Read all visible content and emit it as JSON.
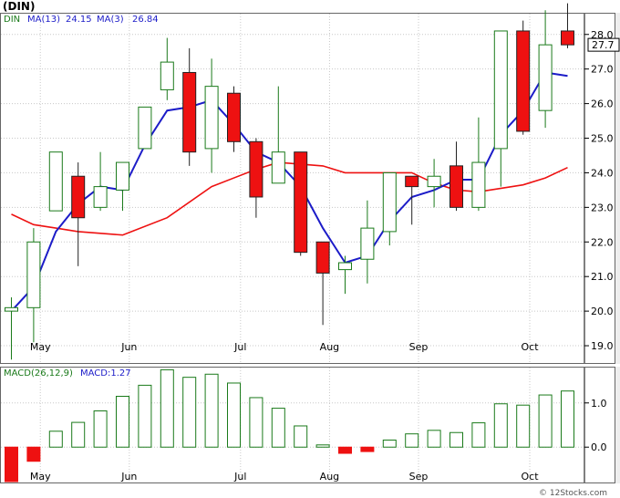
{
  "chart_data": [
    {
      "type": "candlestick",
      "title": "(DIN)",
      "legend": [
        {
          "key": "sym",
          "text": "DIN",
          "color": "#1a7a1a"
        },
        {
          "key": "ma13",
          "text": "MA(13)",
          "value": "24.15",
          "color": "#1c1cc8"
        },
        {
          "key": "ma3",
          "text": "MA(3)",
          "value": "26.84",
          "color": "#1c1cc8"
        }
      ],
      "months": [
        {
          "label": "May",
          "pos": 1.3
        },
        {
          "label": "Jun",
          "pos": 5.3
        },
        {
          "label": "Jul",
          "pos": 10.3
        },
        {
          "label": "Aug",
          "pos": 14.3
        },
        {
          "label": "Sep",
          "pos": 18.3
        },
        {
          "label": "Oct",
          "pos": 23.3
        }
      ],
      "ylim": [
        18.5,
        28.6
      ],
      "yticks": [
        "19.0",
        "20.0",
        "21.0",
        "22.0",
        "23.0",
        "24.0",
        "25.0",
        "26.0",
        "27.0",
        "28.0"
      ],
      "last_price": "27.7",
      "up_color": "#1a7a1a",
      "down_color": "#ee1111",
      "candles": [
        {
          "o": 20.0,
          "h": 20.4,
          "l": 18.6,
          "c": 20.1
        },
        {
          "o": 20.1,
          "h": 22.4,
          "l": 19.1,
          "c": 22.0
        },
        {
          "o": 22.9,
          "h": 24.6,
          "l": 22.9,
          "c": 24.6
        },
        {
          "o": 23.9,
          "h": 24.3,
          "l": 21.3,
          "c": 22.7
        },
        {
          "o": 23.0,
          "h": 24.6,
          "l": 22.9,
          "c": 23.6
        },
        {
          "o": 23.5,
          "h": 24.3,
          "l": 22.9,
          "c": 24.3
        },
        {
          "o": 24.7,
          "h": 25.9,
          "l": 24.7,
          "c": 25.9
        },
        {
          "o": 26.4,
          "h": 27.9,
          "l": 26.1,
          "c": 27.2
        },
        {
          "o": 26.9,
          "h": 27.6,
          "l": 24.2,
          "c": 24.6
        },
        {
          "o": 24.7,
          "h": 27.3,
          "l": 24.0,
          "c": 26.5
        },
        {
          "o": 26.3,
          "h": 26.5,
          "l": 24.6,
          "c": 24.9
        },
        {
          "o": 24.9,
          "h": 25.0,
          "l": 22.7,
          "c": 23.3
        },
        {
          "o": 23.7,
          "h": 26.5,
          "l": 23.7,
          "c": 24.6
        },
        {
          "o": 24.6,
          "h": 24.6,
          "l": 21.6,
          "c": 21.7
        },
        {
          "o": 22.0,
          "h": 22.0,
          "l": 19.6,
          "c": 21.1
        },
        {
          "o": 21.2,
          "h": 21.6,
          "l": 20.5,
          "c": 21.4
        },
        {
          "o": 21.5,
          "h": 23.2,
          "l": 20.8,
          "c": 22.4
        },
        {
          "o": 22.3,
          "h": 24.0,
          "l": 21.9,
          "c": 24.0
        },
        {
          "o": 23.9,
          "h": 23.9,
          "l": 22.5,
          "c": 23.6
        },
        {
          "o": 23.6,
          "h": 24.4,
          "l": 23.0,
          "c": 23.9
        },
        {
          "o": 24.2,
          "h": 24.9,
          "l": 22.9,
          "c": 23.0
        },
        {
          "o": 23.0,
          "h": 25.6,
          "l": 22.9,
          "c": 24.3
        },
        {
          "o": 24.7,
          "h": 28.1,
          "l": 23.6,
          "c": 28.1
        },
        {
          "o": 28.1,
          "h": 28.4,
          "l": 25.1,
          "c": 25.2
        },
        {
          "o": 25.8,
          "h": 28.7,
          "l": 25.3,
          "c": 27.7
        },
        {
          "o": 28.1,
          "h": 28.9,
          "l": 27.6,
          "c": 27.7
        }
      ],
      "ma_long": {
        "name": "MA(13)",
        "color": "#ee1111",
        "points": [
          [
            0,
            22.8
          ],
          [
            1,
            22.5
          ],
          [
            2,
            22.4
          ],
          [
            3,
            22.3
          ],
          [
            5,
            22.2
          ],
          [
            7,
            22.7
          ],
          [
            9,
            23.6
          ],
          [
            11,
            24.1
          ],
          [
            12,
            24.3
          ],
          [
            14,
            24.2
          ],
          [
            15,
            24.0
          ],
          [
            17,
            24.0
          ],
          [
            18,
            24.0
          ],
          [
            19,
            23.7
          ],
          [
            20,
            23.5
          ],
          [
            21,
            23.45
          ],
          [
            23,
            23.65
          ],
          [
            24,
            23.85
          ],
          [
            25,
            24.15
          ]
        ]
      },
      "ma_short": {
        "name": "MA(3)",
        "color": "#1c1cc8",
        "points": [
          [
            0,
            20.0
          ],
          [
            1,
            20.7
          ],
          [
            2,
            22.3
          ],
          [
            3,
            23.1
          ],
          [
            4,
            23.6
          ],
          [
            5,
            23.5
          ],
          [
            6,
            24.8
          ],
          [
            7,
            25.8
          ],
          [
            8,
            25.9
          ],
          [
            9,
            26.1
          ],
          [
            10,
            25.4
          ],
          [
            11,
            24.6
          ],
          [
            12,
            24.3
          ],
          [
            13,
            23.6
          ],
          [
            14,
            22.4
          ],
          [
            15,
            21.4
          ],
          [
            16,
            21.6
          ],
          [
            17,
            22.6
          ],
          [
            18,
            23.3
          ],
          [
            19,
            23.5
          ],
          [
            20,
            23.8
          ],
          [
            21,
            23.8
          ],
          [
            22,
            25.1
          ],
          [
            23,
            25.8
          ],
          [
            24,
            26.9
          ],
          [
            25,
            26.8
          ]
        ]
      }
    },
    {
      "type": "bar",
      "legend": [
        {
          "key": "macdparams",
          "text": "MACD(26,12,9)",
          "color": "#1a7a1a"
        },
        {
          "key": "macdval",
          "text": "MACD:1.27",
          "color": "#1c1cc8"
        }
      ],
      "ylim": [
        -0.8,
        1.8
      ],
      "yticks": [
        "0.0",
        "1.0"
      ],
      "up_color": "#1a7a1a",
      "down_color": "#ee1111",
      "values": [
        -0.78,
        -0.32,
        0.36,
        0.56,
        0.82,
        1.15,
        1.4,
        1.75,
        1.58,
        1.65,
        1.45,
        1.12,
        0.88,
        0.48,
        0.05,
        -0.14,
        -0.1,
        0.16,
        0.3,
        0.38,
        0.33,
        0.55,
        0.98,
        0.95,
        1.18,
        1.27
      ]
    }
  ],
  "watermark": "© 12Stocks.com"
}
